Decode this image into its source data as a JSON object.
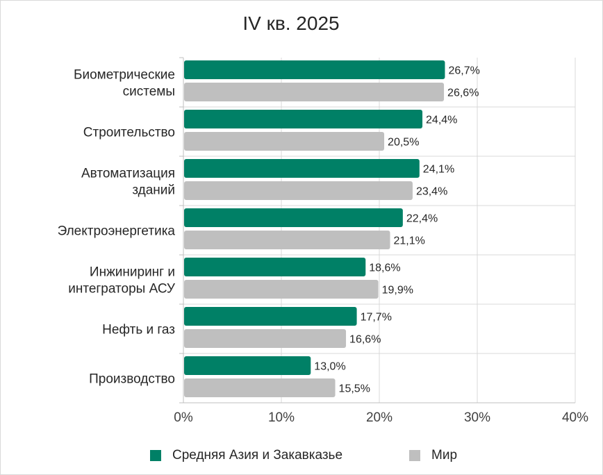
{
  "chart_data": {
    "type": "bar",
    "orientation": "horizontal",
    "title": "IV кв. 2025",
    "categories": [
      [
        "Биометрические",
        "системы"
      ],
      [
        "Строительство"
      ],
      [
        "Автоматизация",
        "зданий"
      ],
      [
        "Электроэнергетика"
      ],
      [
        "Инжиниринг и",
        "интеграторы АСУ"
      ],
      [
        "Нефть и газ"
      ],
      [
        "Производство"
      ]
    ],
    "series": [
      {
        "name": "Средняя Азия и Закавказье",
        "color": "#008066",
        "values": [
          26.7,
          24.4,
          24.1,
          22.4,
          18.6,
          17.7,
          13.0
        ],
        "labels": [
          "26,7%",
          "24,4%",
          "24,1%",
          "22,4%",
          "18,6%",
          "17,7%",
          "13,0%"
        ]
      },
      {
        "name": "Мир",
        "color": "#bfbfbf",
        "values": [
          26.6,
          20.5,
          23.4,
          21.1,
          19.9,
          16.6,
          15.5
        ],
        "labels": [
          "26,6%",
          "20,5%",
          "23,4%",
          "21,1%",
          "19,9%",
          "16,6%",
          "15,5%"
        ]
      }
    ],
    "xlim": [
      0,
      40
    ],
    "xticks": [
      0,
      10,
      20,
      30,
      40
    ],
    "xtick_labels": [
      "0%",
      "10%",
      "20%",
      "30%",
      "40%"
    ],
    "xlabel": "",
    "ylabel": "",
    "grid": "vertical",
    "legend_position": "bottom"
  }
}
